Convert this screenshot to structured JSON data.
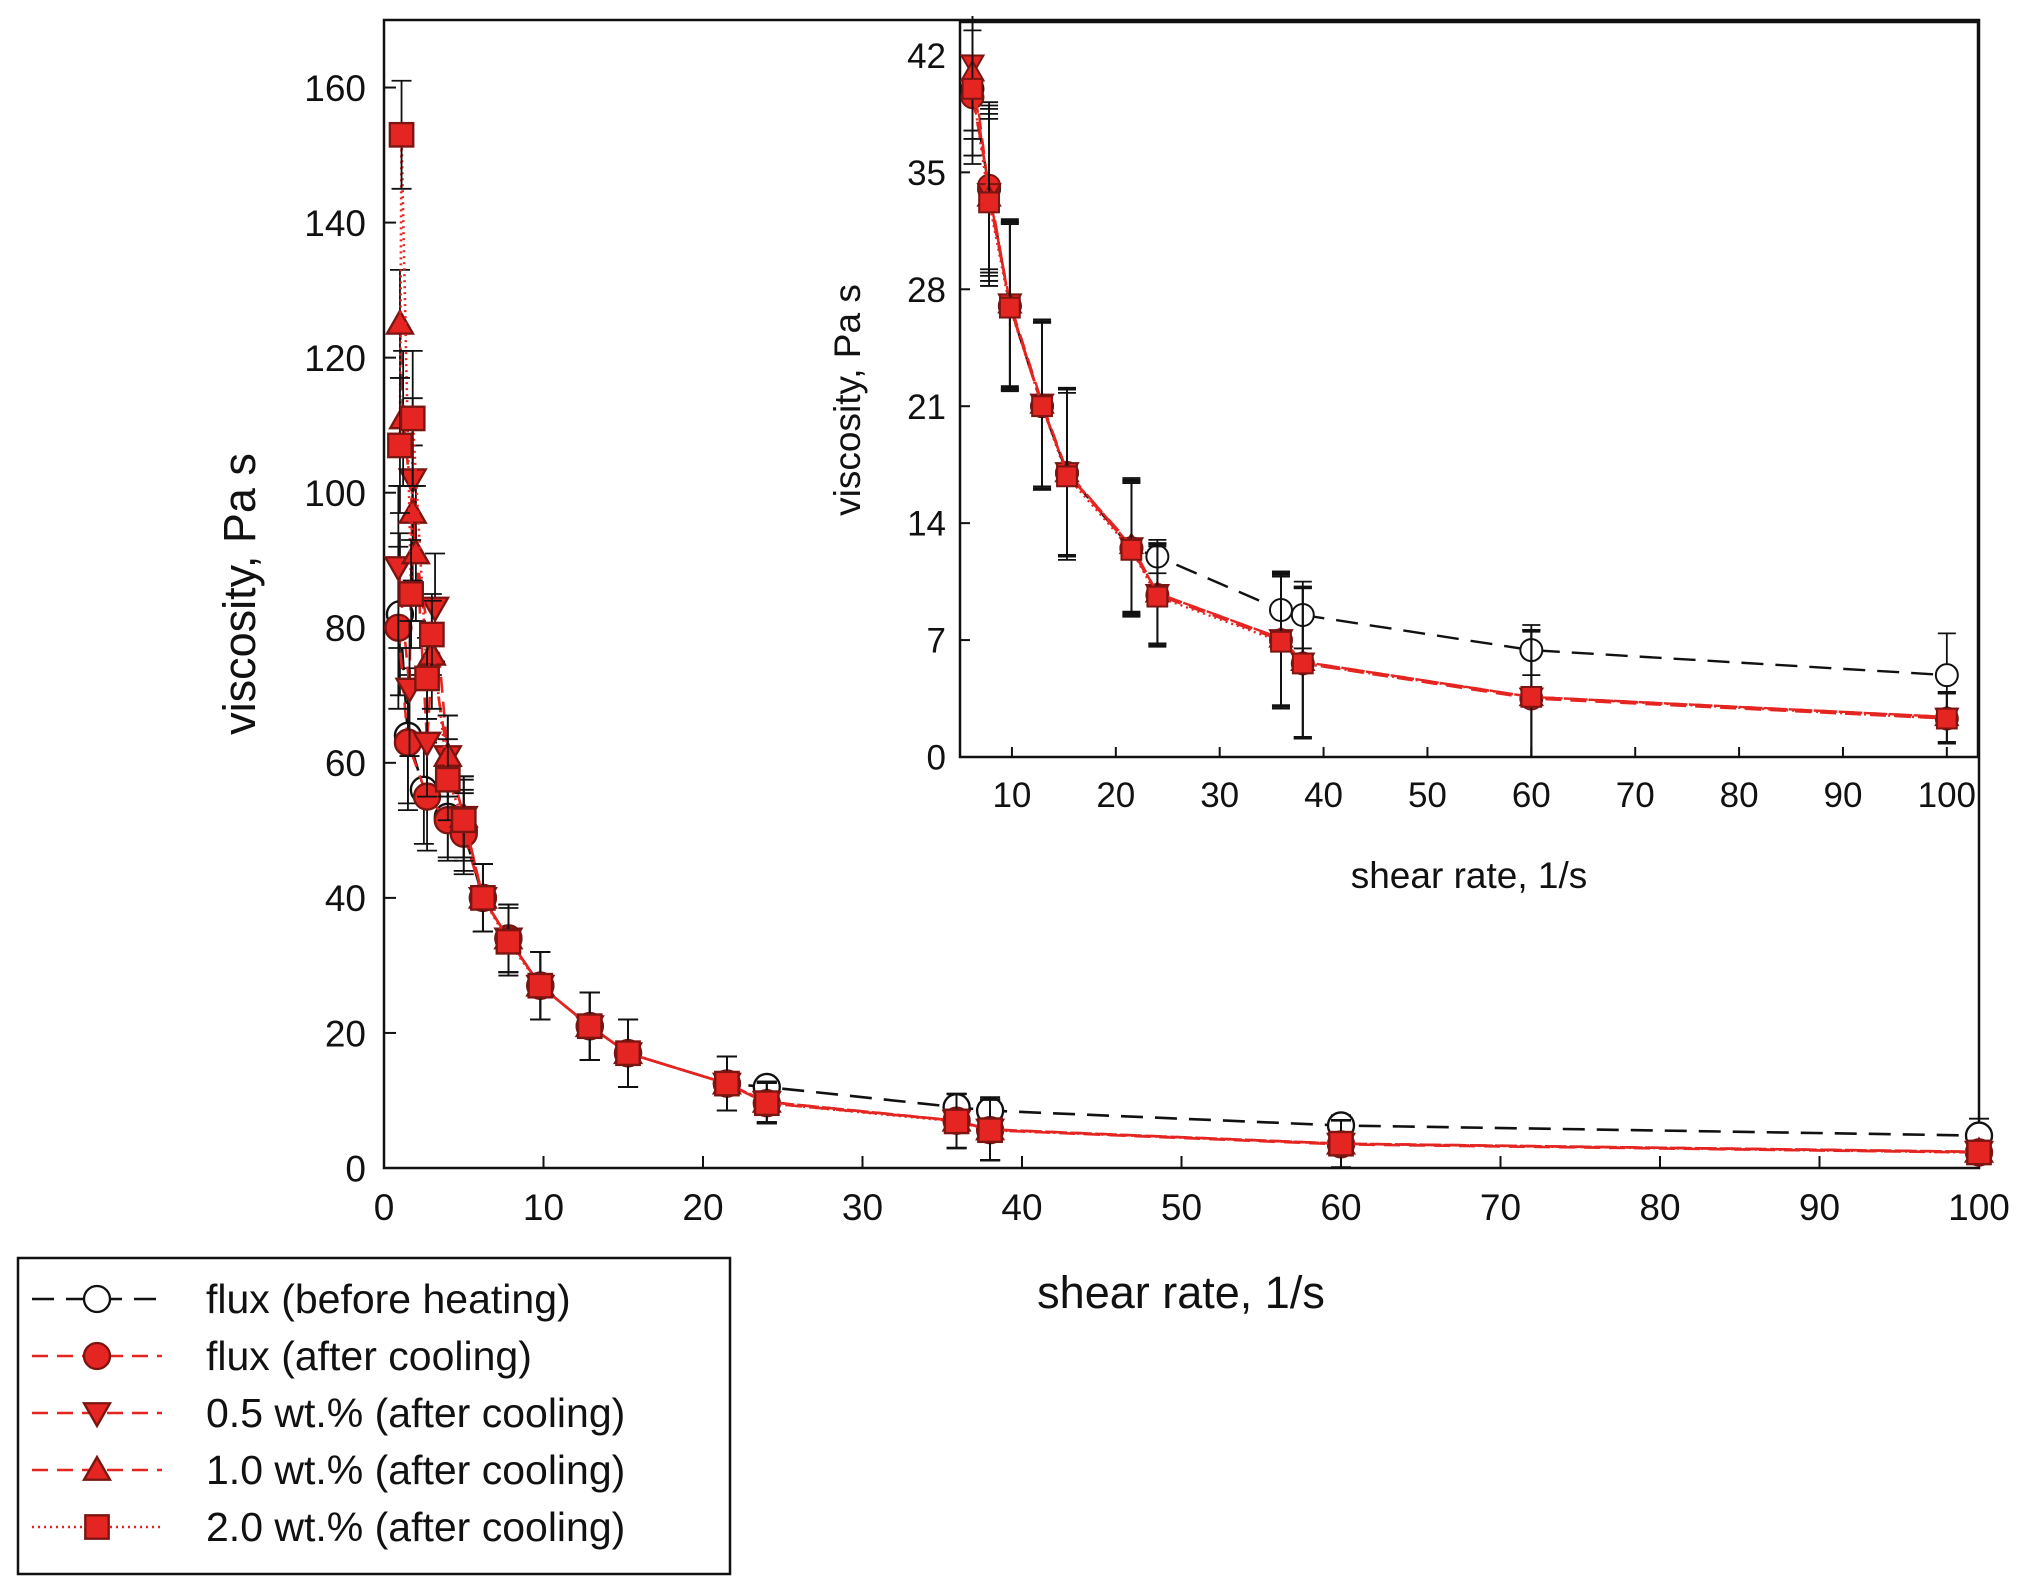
{
  "colors": {
    "black": "#111111",
    "red": "#e52521",
    "marker_edge": "#7a1512"
  },
  "chart_data": [
    {
      "id": "main",
      "type": "line",
      "xlabel": "shear rate, 1/s",
      "ylabel": "viscosity, Pa s",
      "xlim": [
        0,
        100
      ],
      "ylim": [
        0,
        170
      ],
      "xticks": [
        "0",
        "10",
        "20",
        "30",
        "40",
        "50",
        "60",
        "70",
        "80",
        "90",
        "100"
      ],
      "yticks": [
        "0",
        "20",
        "40",
        "60",
        "80",
        "100",
        "120",
        "140",
        "160"
      ],
      "legend_position": "outside-bottom-left",
      "series": [
        {
          "name": "flux (before heating)",
          "color": "#111111",
          "marker": "circle-open",
          "line": "long-dash",
          "x": [
            1.0,
            1.5,
            2.5,
            4.0,
            5.0,
            6.2,
            7.8,
            9.8,
            12.9,
            15.3,
            21.5,
            24.0,
            35.9,
            38.0,
            60.0,
            100.0
          ],
          "y": [
            82,
            64,
            56,
            52,
            50,
            40,
            34,
            27,
            21,
            17,
            12.5,
            12,
            9,
            8.5,
            6.3,
            4.8
          ],
          "err": [
            12,
            10,
            8,
            6,
            6,
            5,
            5,
            5,
            5,
            5,
            4,
            1,
            2,
            2,
            1.5,
            2.5
          ]
        },
        {
          "name": "flux (after cooling)",
          "color": "#e52521",
          "marker": "circle",
          "line": "dash",
          "x": [
            0.9,
            1.5,
            2.7,
            4.0,
            5.0,
            6.2,
            7.8,
            9.8,
            12.9,
            15.3,
            21.5,
            24.0,
            35.9,
            38.0,
            60.0,
            100.0
          ],
          "y": [
            80,
            63,
            55,
            51.5,
            49.5,
            40,
            34,
            27,
            21,
            17,
            12.5,
            9.6,
            7,
            5.6,
            3.5,
            2.3
          ],
          "err": [
            12,
            10,
            8,
            6,
            6,
            5,
            5,
            5,
            5,
            5,
            4,
            3,
            4,
            4.5,
            3.5,
            1.5
          ]
        },
        {
          "name": "0.5 wt.% (after cooling)",
          "color": "#e52521",
          "marker": "triangle-down",
          "line": "dash",
          "x": [
            0.9,
            1.6,
            1.8,
            2.7,
            3.2,
            4.0,
            5.0,
            6.2,
            7.8,
            9.8,
            12.9,
            15.3,
            21.5,
            24.0,
            35.9,
            38.0,
            60.0,
            100.0
          ],
          "y": [
            89,
            71,
            102,
            63,
            83,
            61,
            52,
            40,
            34,
            27,
            21,
            17,
            12.5,
            9.8,
            7,
            5.7,
            3.6,
            2.4
          ],
          "err": [
            12,
            10,
            12,
            8,
            8,
            6,
            6,
            5,
            5,
            5,
            5,
            5,
            4,
            3,
            4,
            4.5,
            3.5,
            1.5
          ]
        },
        {
          "name": "1.0 wt.% (after cooling)",
          "color": "#e52521",
          "marker": "triangle-up",
          "line": "dash",
          "x": [
            1.0,
            1.2,
            1.8,
            2.0,
            3.0,
            4.0,
            5.0,
            6.2,
            7.8,
            9.8,
            12.9,
            15.3,
            21.5,
            24.0,
            35.9,
            38.0,
            60.0,
            100.0
          ],
          "y": [
            125,
            111,
            97,
            91,
            76,
            61,
            52,
            40,
            34,
            27,
            21,
            17,
            12.5,
            9.8,
            7,
            5.7,
            3.6,
            2.4
          ],
          "err": [
            8,
            10,
            10,
            10,
            8,
            6,
            6,
            5,
            5,
            5,
            5,
            5,
            4,
            3,
            4,
            4.5,
            3.5,
            1.5
          ]
        },
        {
          "name": "2.0 wt.% (after cooling)",
          "color": "#e52521",
          "marker": "square",
          "line": "dot",
          "x": [
            1.1,
            1.0,
            1.8,
            1.7,
            3.0,
            2.7,
            4.0,
            5.0,
            6.2,
            7.8,
            9.8,
            12.9,
            15.3,
            21.5,
            24.0,
            35.9,
            38.0,
            60.0,
            100.0
          ],
          "y": [
            153,
            107,
            111,
            85,
            79,
            72.5,
            57.5,
            51.5,
            40,
            33.5,
            27,
            21,
            17,
            12.5,
            9.6,
            6.9,
            5.6,
            3.6,
            2.3
          ],
          "err": [
            8,
            10,
            10,
            8,
            6,
            6,
            6,
            6,
            5,
            5,
            5,
            5,
            5,
            4,
            3,
            4,
            4.5,
            3.5,
            1.5
          ]
        }
      ]
    },
    {
      "id": "inset",
      "type": "line",
      "xlabel": "shear rate, 1/s",
      "ylabel": "viscosity, Pa s",
      "xlim": [
        5,
        103
      ],
      "ylim": [
        0,
        44
      ],
      "xticks": [
        "10",
        "20",
        "30",
        "40",
        "50",
        "60",
        "70",
        "80",
        "90",
        "100"
      ],
      "yticks": [
        "0",
        "7",
        "14",
        "21",
        "28",
        "35",
        "42"
      ],
      "series": [
        {
          "name": "flux (before heating)",
          "color": "#111111",
          "marker": "circle-open",
          "line": "long-dash",
          "x": [
            6.2,
            7.8,
            9.8,
            12.9,
            15.3,
            21.5,
            24.0,
            35.9,
            38.0,
            60.0,
            100.0
          ],
          "y": [
            40,
            34,
            27,
            21,
            17,
            12.5,
            12,
            8.8,
            8.5,
            6.4,
            4.9
          ],
          "err": [
            4,
            5,
            5,
            5,
            5,
            4,
            1,
            2,
            2,
            1.5,
            2.5
          ]
        },
        {
          "name": "flux (after cooling)",
          "color": "#e52521",
          "marker": "circle",
          "line": "dash",
          "x": [
            6.2,
            7.8,
            9.8,
            12.9,
            15.3,
            21.5,
            24.0,
            35.9,
            38.0,
            60.0,
            100.0
          ],
          "y": [
            39.5,
            34.2,
            27,
            21,
            17,
            12.5,
            9.7,
            7.0,
            5.6,
            3.5,
            2.3
          ],
          "err": [
            4,
            5,
            5,
            5,
            5,
            4,
            3,
            4,
            4.5,
            4,
            1.5
          ]
        },
        {
          "name": "0.5 wt.% (after cooling)",
          "color": "#e52521",
          "marker": "triangle-down",
          "line": "dash",
          "x": [
            6.2,
            7.8,
            9.8,
            12.9,
            15.3,
            21.5,
            24.0,
            35.9,
            38.0,
            60.0,
            100.0
          ],
          "y": [
            41.5,
            33.8,
            27.2,
            21.2,
            17.1,
            12.6,
            9.8,
            7.1,
            5.7,
            3.6,
            2.4
          ],
          "err": [
            4,
            5,
            5,
            5,
            5,
            4,
            3,
            4,
            4.5,
            4,
            1.5
          ]
        },
        {
          "name": "1.0 wt.% (after cooling)",
          "color": "#e52521",
          "marker": "triangle-up",
          "line": "dash",
          "x": [
            6.2,
            7.8,
            9.8,
            12.9,
            15.3,
            21.5,
            24.0,
            35.9,
            38.0,
            60.0,
            100.0
          ],
          "y": [
            41.0,
            33.5,
            27.1,
            21.1,
            17.0,
            12.7,
            9.8,
            7.1,
            5.7,
            3.6,
            2.4
          ],
          "err": [
            4,
            5,
            5,
            5,
            5,
            4,
            3,
            4,
            4.5,
            4,
            1.5
          ]
        },
        {
          "name": "2.0 wt.% (after cooling)",
          "color": "#e52521",
          "marker": "square",
          "line": "dot",
          "x": [
            6.2,
            7.8,
            9.8,
            12.9,
            15.3,
            21.5,
            24.0,
            35.9,
            38.0,
            60.0,
            100.0
          ],
          "y": [
            40.0,
            33.2,
            26.9,
            21.0,
            16.8,
            12.4,
            9.6,
            6.9,
            5.6,
            3.6,
            2.3
          ],
          "err": [
            4,
            5,
            5,
            5,
            5,
            4,
            3,
            4,
            4.5,
            4,
            1.5
          ]
        }
      ]
    }
  ]
}
